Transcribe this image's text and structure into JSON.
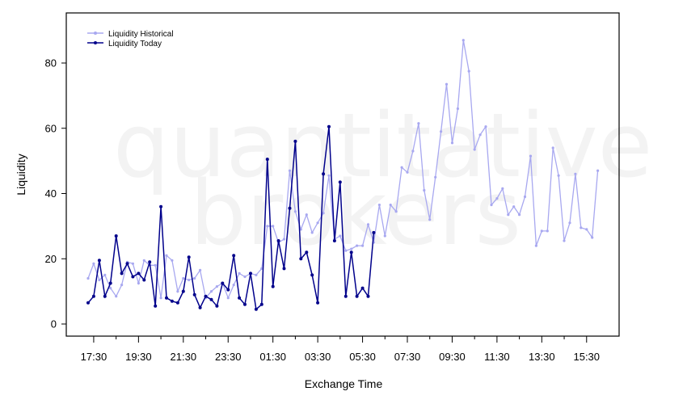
{
  "chart_data": {
    "type": "line",
    "title": "",
    "xlabel": "Exchange Time",
    "ylabel": "Liquidity",
    "watermark": [
      "quantitative",
      "brokers"
    ],
    "ylim": [
      -3,
      95
    ],
    "yticks": [
      0,
      20,
      40,
      60,
      80
    ],
    "xtick_labels": [
      "17:30",
      "19:30",
      "21:30",
      "23:30",
      "01:30",
      "03:30",
      "05:30",
      "07:30",
      "09:30",
      "11:30",
      "13:30",
      "15:30"
    ],
    "legend_position": "top-left",
    "series": [
      {
        "name": "Liquidity Historical",
        "color": "#a8a8f0",
        "values": [
          14,
          18.5,
          13.5,
          15,
          11,
          8.5,
          12,
          19,
          18.5,
          12.5,
          19.5,
          18,
          18,
          8,
          21,
          19.5,
          10,
          14,
          13.5,
          14,
          16.5,
          8,
          10,
          11.5,
          12.5,
          8,
          12,
          15.5,
          14.5,
          15.5,
          15,
          17,
          30,
          30,
          25,
          26,
          47,
          34.5,
          29,
          33.5,
          28,
          31,
          34,
          45.5,
          26,
          27,
          22.5,
          23,
          24,
          24,
          30.5,
          25,
          36.5,
          27,
          36.5,
          34.5,
          48,
          46.5,
          53,
          61.5,
          41,
          32,
          45,
          59,
          73.5,
          55.5,
          66,
          87,
          77.5,
          53.5,
          58,
          60.5,
          36.5,
          38.5,
          41.5,
          33.5,
          36,
          33.5,
          39,
          51.5,
          24,
          28.5,
          28.5,
          54,
          45.5,
          25.5,
          31,
          46,
          29.5,
          29,
          26.5,
          47
        ]
      },
      {
        "name": "Liquidity Today",
        "color": "#00008b",
        "values": [
          6.5,
          8.5,
          19.5,
          8.5,
          12.5,
          27,
          15.5,
          18.5,
          14.5,
          15.5,
          13.5,
          19,
          5.5,
          36,
          8,
          7,
          6.5,
          10,
          20.5,
          9,
          5,
          8.5,
          7.5,
          5.5,
          12.5,
          10.5,
          21,
          8,
          6,
          15.5,
          4.5,
          6,
          50.5,
          11.5,
          25.5,
          17,
          35.5,
          56,
          20,
          22,
          15,
          6.5,
          46,
          60.5,
          25.5,
          43.5,
          8.5,
          22,
          8.5,
          11,
          8.5,
          28
        ]
      }
    ]
  }
}
